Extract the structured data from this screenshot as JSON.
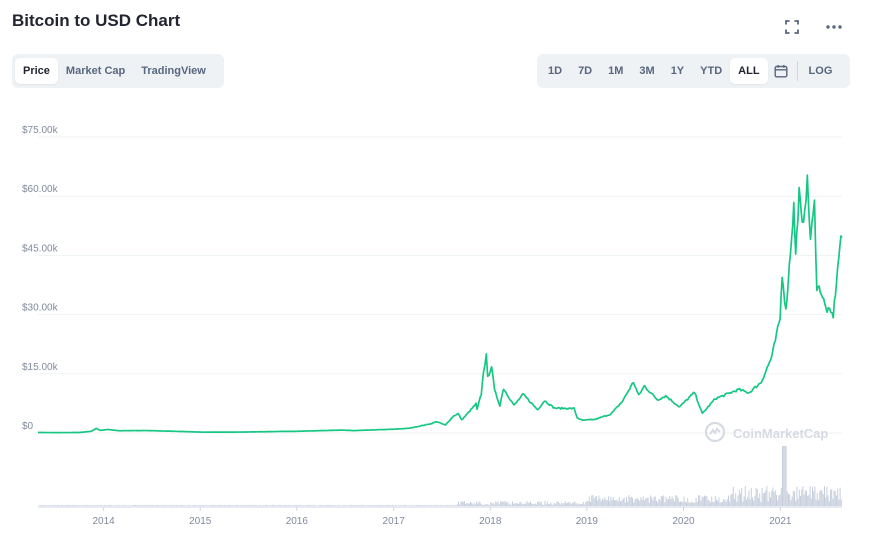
{
  "header": {
    "title": "Bitcoin to USD Chart",
    "icons": [
      "fullscreen-icon",
      "more-icon"
    ]
  },
  "chart_tabs": [
    {
      "label": "Price",
      "active": true
    },
    {
      "label": "Market Cap",
      "active": false
    },
    {
      "label": "TradingView",
      "active": false
    }
  ],
  "range_tabs": [
    {
      "label": "1D",
      "active": false
    },
    {
      "label": "7D",
      "active": false
    },
    {
      "label": "1M",
      "active": false
    },
    {
      "label": "3M",
      "active": false
    },
    {
      "label": "1Y",
      "active": false
    },
    {
      "label": "YTD",
      "active": false
    },
    {
      "label": "ALL",
      "active": true
    }
  ],
  "log_label": "LOG",
  "watermark": "CoinMarketCap",
  "colors": {
    "line": "#16c784",
    "volume": "#c7cedd",
    "grid": "#eff2f5",
    "axis_text": "#808a9d"
  },
  "chart_data": {
    "type": "line",
    "title": "Bitcoin to USD Chart",
    "ylabel": "",
    "xlabel": "",
    "ylim": [
      0,
      75000
    ],
    "y_ticks": [
      0,
      15000,
      30000,
      45000,
      60000,
      75000
    ],
    "y_tick_labels": [
      "$0",
      "$15.00k",
      "$30.00k",
      "$45.00k",
      "$60.00k",
      "$75.00k"
    ],
    "x_tick_labels": [
      "2014",
      "2015",
      "2016",
      "2017",
      "2018",
      "2019",
      "2020",
      "2021"
    ],
    "x_range": [
      "2013-04-28",
      "2021-08-22"
    ],
    "grid": true,
    "series": [
      {
        "values": [
          [
            "2013-04-28",
            135
          ],
          [
            "2013-07-01",
            95
          ],
          [
            "2013-10-01",
            125
          ],
          [
            "2013-11-15",
            430
          ],
          [
            "2013-12-04",
            1150
          ],
          [
            "2013-12-20",
            650
          ],
          [
            "2014-01-15",
            900
          ],
          [
            "2014-03-01",
            570
          ],
          [
            "2014-06-01",
            630
          ],
          [
            "2014-09-01",
            480
          ],
          [
            "2015-01-15",
            210
          ],
          [
            "2015-06-01",
            230
          ],
          [
            "2015-11-05",
            400
          ],
          [
            "2016-01-01",
            430
          ],
          [
            "2016-06-15",
            740
          ],
          [
            "2016-08-01",
            600
          ],
          [
            "2016-12-31",
            960
          ],
          [
            "2017-03-01",
            1200
          ],
          [
            "2017-05-25",
            2400
          ],
          [
            "2017-06-12",
            2900
          ],
          [
            "2017-07-15",
            2000
          ],
          [
            "2017-08-15",
            4300
          ],
          [
            "2017-09-02",
            4900
          ],
          [
            "2017-09-15",
            3300
          ],
          [
            "2017-10-20",
            5900
          ],
          [
            "2017-11-08",
            7400
          ],
          [
            "2017-11-12",
            5900
          ],
          [
            "2017-11-28",
            9900
          ],
          [
            "2017-12-07",
            16000
          ],
          [
            "2017-12-17",
            19500
          ],
          [
            "2017-12-22",
            14000
          ],
          [
            "2018-01-06",
            17000
          ],
          [
            "2018-01-17",
            10800
          ],
          [
            "2018-02-06",
            7000
          ],
          [
            "2018-02-20",
            11300
          ],
          [
            "2018-04-01",
            7000
          ],
          [
            "2018-05-05",
            9800
          ],
          [
            "2018-06-29",
            5900
          ],
          [
            "2018-07-25",
            8200
          ],
          [
            "2018-09-01",
            6300
          ],
          [
            "2018-11-14",
            6200
          ],
          [
            "2018-11-25",
            3900
          ],
          [
            "2018-12-15",
            3200
          ],
          [
            "2019-02-01",
            3450
          ],
          [
            "2019-04-02",
            4800
          ],
          [
            "2019-05-15",
            8000
          ],
          [
            "2019-06-26",
            12900
          ],
          [
            "2019-07-16",
            9500
          ],
          [
            "2019-08-06",
            11900
          ],
          [
            "2019-09-25",
            8400
          ],
          [
            "2019-10-26",
            9400
          ],
          [
            "2019-12-17",
            6600
          ],
          [
            "2020-02-12",
            10300
          ],
          [
            "2020-03-12",
            4900
          ],
          [
            "2020-04-30",
            8700
          ],
          [
            "2020-06-01",
            9500
          ],
          [
            "2020-07-27",
            11000
          ],
          [
            "2020-09-05",
            10200
          ],
          [
            "2020-10-21",
            12900
          ],
          [
            "2020-11-30",
            19400
          ],
          [
            "2020-12-31",
            29000
          ],
          [
            "2021-01-08",
            40500
          ],
          [
            "2021-01-22",
            30800
          ],
          [
            "2021-02-21",
            57500
          ],
          [
            "2021-02-28",
            45000
          ],
          [
            "2021-03-13",
            61000
          ],
          [
            "2021-03-25",
            52000
          ],
          [
            "2021-04-13",
            63500
          ],
          [
            "2021-04-25",
            49000
          ],
          [
            "2021-05-10",
            58000
          ],
          [
            "2021-05-19",
            37000
          ],
          [
            "2021-06-01",
            36500
          ],
          [
            "2021-06-22",
            31500
          ],
          [
            "2021-07-20",
            29800
          ],
          [
            "2021-08-14",
            47500
          ],
          [
            "2021-08-22",
            49500
          ]
        ]
      }
    ]
  }
}
